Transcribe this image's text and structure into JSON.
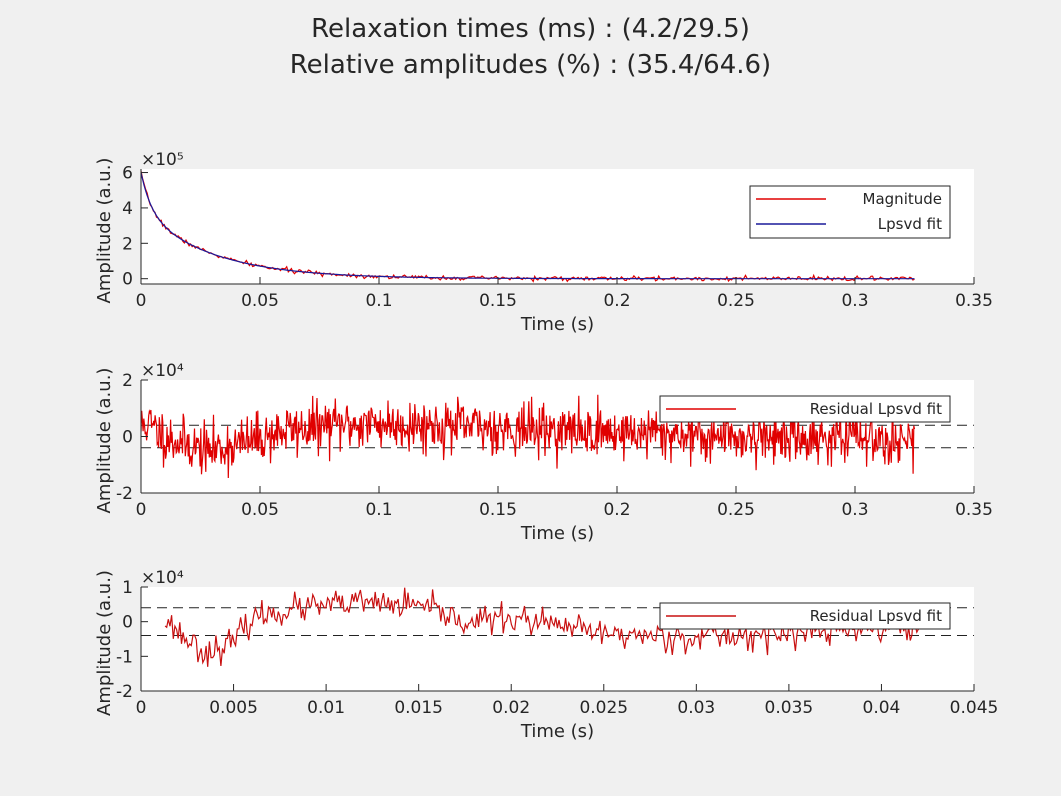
{
  "figure": {
    "title_line1": "Relaxation times (ms) : (4.2/29.5)",
    "title_line2": "Relative amplitudes (%) : (35.4/64.6)",
    "background": "#f0f0f0",
    "axes_background": "#ffffff"
  },
  "chart_data": [
    {
      "type": "line",
      "xlabel": "Time (s)",
      "ylabel": "Amplitude (a.u.)",
      "exponent_label": "×10⁵",
      "xlim": [
        0,
        0.35
      ],
      "ylim": [
        -0.3,
        6.2
      ],
      "xticks": [
        0,
        0.05,
        0.1,
        0.15,
        0.2,
        0.25,
        0.3,
        0.35
      ],
      "xtick_labels": [
        "0",
        "0.05",
        "0.1",
        "0.15",
        "0.2",
        "0.25",
        "0.3",
        "0.35"
      ],
      "yticks": [
        0,
        2,
        4,
        6
      ],
      "ytick_labels": [
        "0",
        "2",
        "4",
        "6"
      ],
      "legend_position": "top-right",
      "series": [
        {
          "name": "Magnitude",
          "color": "#e00000",
          "model": {
            "amplitudes": [
              2.12,
              3.88
            ],
            "taus": [
              0.0042,
              0.0295
            ],
            "t_start": 0,
            "t_end": 0.325,
            "n": 500,
            "noise": 0.06,
            "seed": 7
          }
        },
        {
          "name": "Lpsvd fit",
          "color": "#1a1a9a",
          "model": {
            "amplitudes": [
              2.12,
              3.88
            ],
            "taus": [
              0.0042,
              0.0295
            ],
            "t_start": 0,
            "t_end": 0.325,
            "n": 500,
            "noise": 0,
            "seed": 0
          }
        }
      ]
    },
    {
      "type": "line",
      "xlabel": "Time (s)",
      "ylabel": "Amplitude (a.u.)",
      "exponent_label": "×10⁴",
      "xlim": [
        0,
        0.35
      ],
      "ylim": [
        -2,
        2
      ],
      "xticks": [
        0,
        0.05,
        0.1,
        0.15,
        0.2,
        0.25,
        0.3,
        0.35
      ],
      "xtick_labels": [
        "0",
        "0.05",
        "0.1",
        "0.15",
        "0.2",
        "0.25",
        "0.3",
        "0.35"
      ],
      "yticks": [
        -2,
        0,
        2
      ],
      "ytick_labels": [
        "-2",
        "0",
        "2"
      ],
      "legend_position": "top-right",
      "reference_lines": [
        0.4,
        -0.4
      ],
      "series": [
        {
          "name": "Residual Lpsvd fit",
          "color": "#e00000",
          "envelope": {
            "t": [
              0,
              0.002,
              0.01,
              0.02,
              0.028,
              0.04,
              0.06,
              0.08,
              0.1,
              0.12,
              0.15,
              0.18,
              0.2,
              0.25,
              0.3,
              0.325
            ],
            "mean": [
              0.3,
              0.5,
              0.0,
              -0.3,
              -0.5,
              -0.3,
              0.2,
              0.4,
              0.45,
              0.4,
              0.3,
              0.2,
              0.15,
              0.0,
              -0.05,
              -0.05
            ]
          },
          "noise": 0.45,
          "t_start": 0,
          "t_end": 0.325,
          "n": 1100,
          "seed": 11
        }
      ]
    },
    {
      "type": "line",
      "xlabel": "Time (s)",
      "ylabel": "Amplitude (a.u.)",
      "exponent_label": "×10⁴",
      "xlim": [
        0,
        0.045
      ],
      "ylim": [
        -2,
        1
      ],
      "xticks": [
        0,
        0.005,
        0.01,
        0.015,
        0.02,
        0.025,
        0.03,
        0.035,
        0.04,
        0.045
      ],
      "xtick_labels": [
        "0",
        "0.005",
        "0.01",
        "0.015",
        "0.02",
        "0.025",
        "0.03",
        "0.035",
        "0.04",
        "0.045"
      ],
      "yticks": [
        -2,
        -1,
        0,
        1
      ],
      "ytick_labels": [
        "-2",
        "-1",
        "0",
        "1"
      ],
      "legend_position": "top-right",
      "reference_lines": [
        0.4,
        -0.4
      ],
      "series": [
        {
          "name": "Residual Lpsvd fit",
          "color": "#c81010",
          "envelope": {
            "t": [
              0.0013,
              0.002,
              0.0035,
              0.005,
              0.006,
              0.008,
              0.01,
              0.012,
              0.015,
              0.0175,
              0.02,
              0.025,
              0.03,
              0.035,
              0.04,
              0.042
            ],
            "mean": [
              0.1,
              -0.3,
              -0.9,
              -0.6,
              0.1,
              0.35,
              0.45,
              0.55,
              0.45,
              0.0,
              0.1,
              -0.35,
              -0.45,
              -0.35,
              -0.2,
              -0.2
            ]
          },
          "noise": 0.2,
          "t_start": 0.0013,
          "t_end": 0.042,
          "n": 460,
          "seed": 23
        }
      ]
    }
  ]
}
